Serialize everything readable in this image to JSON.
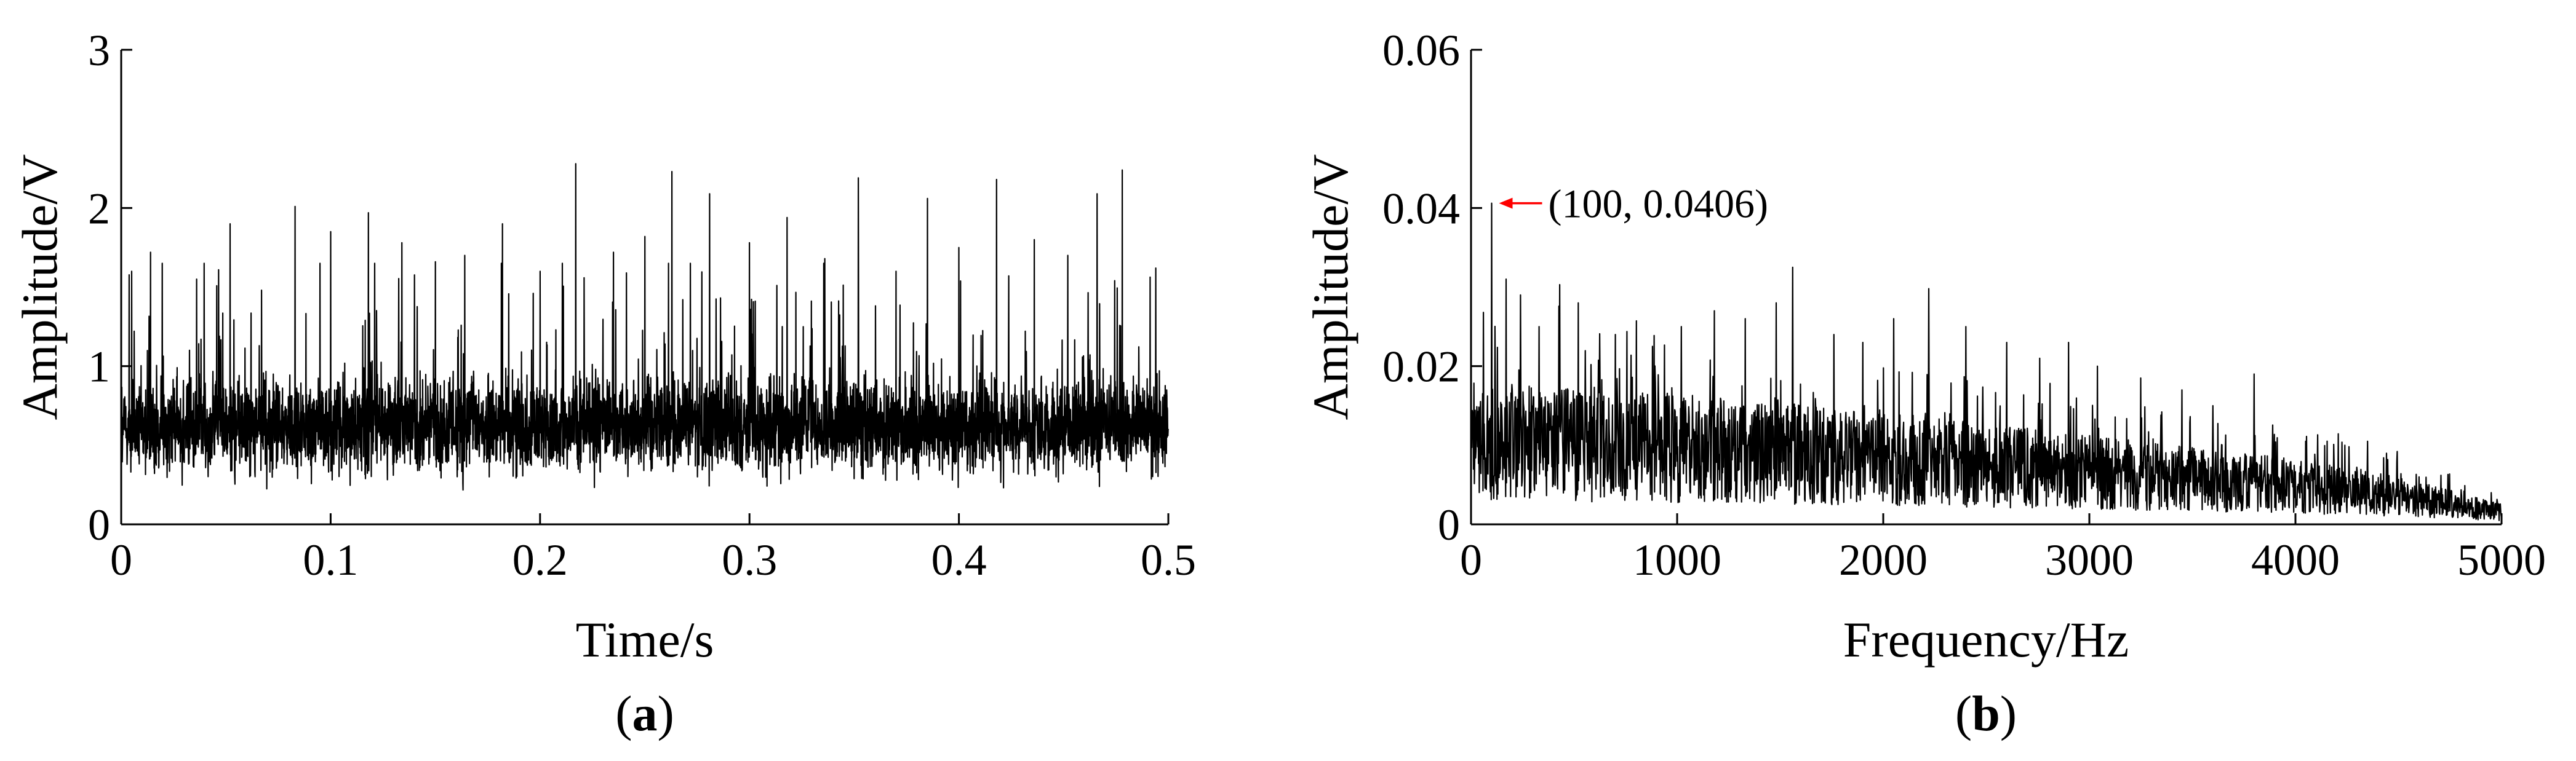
{
  "chart_data": [
    {
      "type": "line",
      "panel_label": "a",
      "xlabel": "Time/s",
      "ylabel": "Amplitude/V",
      "xlim": [
        0,
        0.5
      ],
      "ylim": [
        0,
        3
      ],
      "xticks": [
        0,
        0.1,
        0.2,
        0.3,
        0.4,
        0.5
      ],
      "yticks": [
        0,
        1,
        2,
        3
      ],
      "grid": false,
      "series": [
        {
          "color": "#000000",
          "baseline": 0.62,
          "spread": 0.28,
          "n_samples": 5000,
          "peaks": [
            {
              "x": 0.005,
              "y": 1.6
            },
            {
              "x": 0.014,
              "y": 1.72
            },
            {
              "x": 0.036,
              "y": 1.55
            },
            {
              "x": 0.052,
              "y": 1.9
            },
            {
              "x": 0.067,
              "y": 1.48
            },
            {
              "x": 0.083,
              "y": 2.01
            },
            {
              "x": 0.1,
              "y": 1.85
            },
            {
              "x": 0.118,
              "y": 1.97
            },
            {
              "x": 0.134,
              "y": 1.78
            },
            {
              "x": 0.15,
              "y": 1.66
            },
            {
              "x": 0.164,
              "y": 1.7
            },
            {
              "x": 0.182,
              "y": 1.9
            },
            {
              "x": 0.2,
              "y": 1.6
            },
            {
              "x": 0.217,
              "y": 2.28
            },
            {
              "x": 0.235,
              "y": 1.72
            },
            {
              "x": 0.25,
              "y": 1.82
            },
            {
              "x": 0.263,
              "y": 2.23
            },
            {
              "x": 0.281,
              "y": 2.09
            },
            {
              "x": 0.3,
              "y": 1.78
            },
            {
              "x": 0.318,
              "y": 1.94
            },
            {
              "x": 0.336,
              "y": 1.68
            },
            {
              "x": 0.352,
              "y": 2.19
            },
            {
              "x": 0.37,
              "y": 1.6
            },
            {
              "x": 0.385,
              "y": 2.06
            },
            {
              "x": 0.4,
              "y": 1.75
            },
            {
              "x": 0.418,
              "y": 2.18
            },
            {
              "x": 0.436,
              "y": 1.8
            },
            {
              "x": 0.452,
              "y": 1.7
            },
            {
              "x": 0.466,
              "y": 2.09
            },
            {
              "x": 0.478,
              "y": 2.24
            },
            {
              "x": 0.494,
              "y": 1.62
            }
          ]
        }
      ]
    },
    {
      "type": "line",
      "panel_label": "b",
      "xlabel": "Frequency/Hz",
      "ylabel": "Amplitude/V",
      "xlim": [
        0,
        5000
      ],
      "ylim": [
        0,
        0.06
      ],
      "xticks": [
        0,
        1000,
        2000,
        3000,
        4000,
        5000
      ],
      "yticks": [
        0,
        0.02,
        0.04,
        0.06
      ],
      "ytick_labels": [
        "0",
        "0.02",
        "0.04",
        "0.06"
      ],
      "grid": false,
      "annotation": {
        "text": "(100, 0.0406)",
        "x": 100,
        "y": 0.0406,
        "color": "#ff0000"
      },
      "series": [
        {
          "color": "#000000",
          "trend": [
            {
              "x": 0,
              "y": 0.012
            },
            {
              "x": 1000,
              "y": 0.011
            },
            {
              "x": 2000,
              "y": 0.0095
            },
            {
              "x": 3000,
              "y": 0.0075
            },
            {
              "x": 4000,
              "y": 0.0055
            },
            {
              "x": 4500,
              "y": 0.004
            },
            {
              "x": 5000,
              "y": 0.0018
            }
          ],
          "n_samples": 2500,
          "peaks": [
            {
              "x": 100,
              "y": 0.0406
            },
            {
              "x": 60,
              "y": 0.0268
            },
            {
              "x": 170,
              "y": 0.031
            },
            {
              "x": 240,
              "y": 0.029
            },
            {
              "x": 330,
              "y": 0.025
            },
            {
              "x": 430,
              "y": 0.0303
            },
            {
              "x": 520,
              "y": 0.028
            },
            {
              "x": 700,
              "y": 0.024
            },
            {
              "x": 880,
              "y": 0.0225
            },
            {
              "x": 1020,
              "y": 0.025
            },
            {
              "x": 1180,
              "y": 0.027
            },
            {
              "x": 1330,
              "y": 0.026
            },
            {
              "x": 1480,
              "y": 0.028
            },
            {
              "x": 1560,
              "y": 0.0325
            },
            {
              "x": 1760,
              "y": 0.024
            },
            {
              "x": 1900,
              "y": 0.023
            },
            {
              "x": 2050,
              "y": 0.026
            },
            {
              "x": 2220,
              "y": 0.0298
            },
            {
              "x": 2400,
              "y": 0.025
            },
            {
              "x": 2600,
              "y": 0.023
            },
            {
              "x": 2760,
              "y": 0.021
            },
            {
              "x": 2900,
              "y": 0.023
            },
            {
              "x": 3040,
              "y": 0.02
            },
            {
              "x": 3250,
              "y": 0.0185
            },
            {
              "x": 3450,
              "y": 0.017
            },
            {
              "x": 3600,
              "y": 0.015
            },
            {
              "x": 3800,
              "y": 0.019
            },
            {
              "x": 4050,
              "y": 0.0105
            },
            {
              "x": 4350,
              "y": 0.0105
            },
            {
              "x": 4600,
              "y": 0.006
            },
            {
              "x": 4950,
              "y": 0.004
            }
          ]
        }
      ]
    }
  ]
}
